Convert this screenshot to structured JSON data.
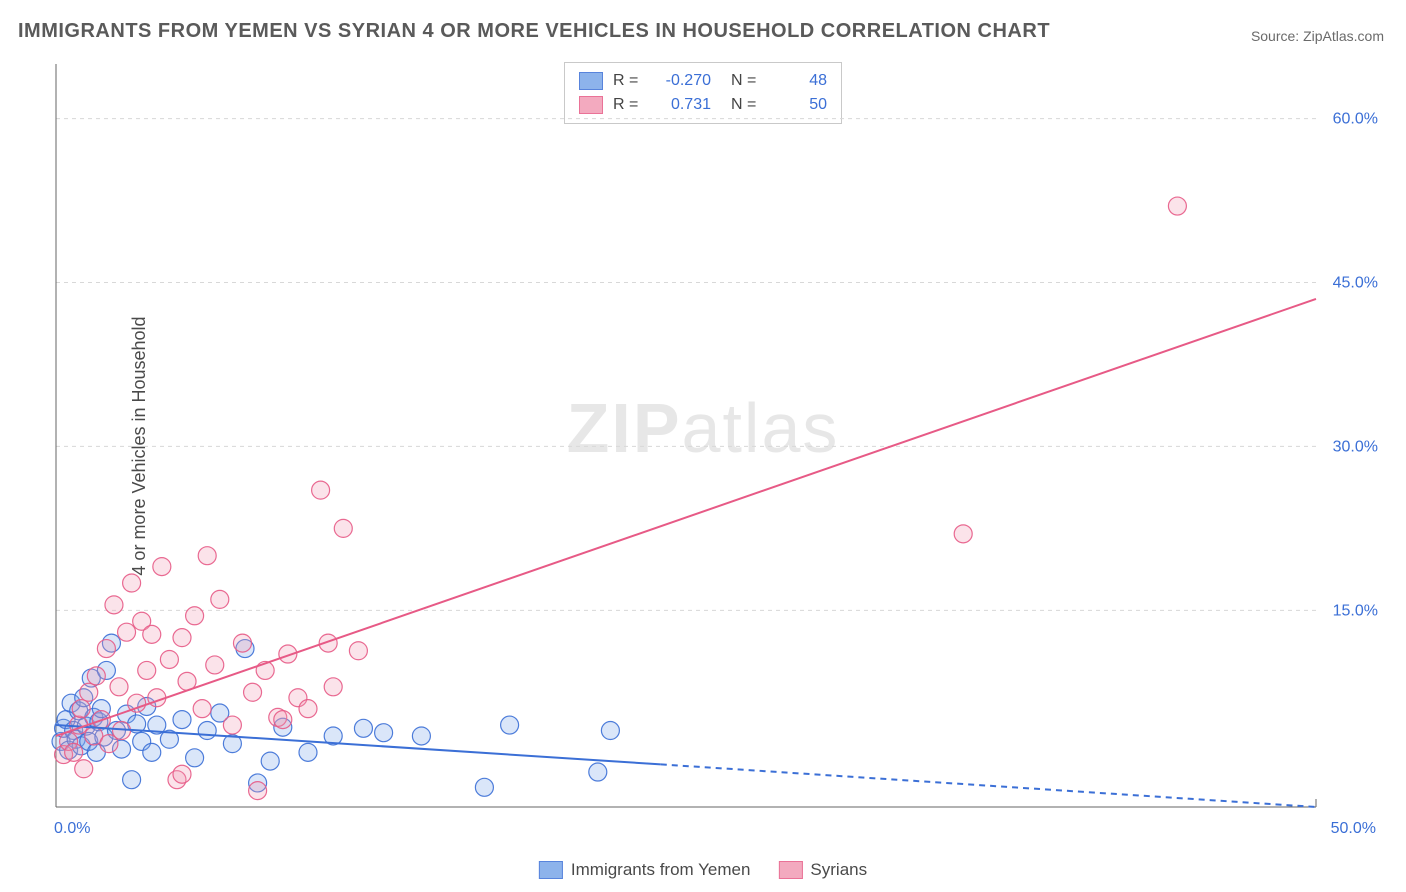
{
  "title": "IMMIGRANTS FROM YEMEN VS SYRIAN 4 OR MORE VEHICLES IN HOUSEHOLD CORRELATION CHART",
  "source_prefix": "Source: ",
  "source_name": "ZipAtlas.com",
  "ylabel": "4 or more Vehicles in Household",
  "watermark_a": "ZIP",
  "watermark_b": "atlas",
  "chart": {
    "type": "scatter",
    "background_color": "#ffffff",
    "grid_color": "#d8d8d8",
    "axis_color": "#666666",
    "x_min": 0.0,
    "x_max": 50.0,
    "y_min": -3.0,
    "y_max": 65.0,
    "x_ticks": [
      {
        "v": 0.0,
        "label": "0.0%"
      },
      {
        "v": 50.0,
        "label": "50.0%"
      }
    ],
    "y_ticks": [
      {
        "v": 15.0,
        "label": "15.0%"
      },
      {
        "v": 30.0,
        "label": "30.0%"
      },
      {
        "v": 45.0,
        "label": "45.0%"
      },
      {
        "v": 60.0,
        "label": "60.0%"
      }
    ],
    "marker_radius": 9,
    "marker_opacity": 0.28,
    "marker_stroke_opacity": 0.9,
    "line_width": 2,
    "series": [
      {
        "key": "yemen",
        "label": "Immigrants from Yemen",
        "color_fill": "#7aa6e8",
        "color_stroke": "#3b6fd6",
        "r_value": "-0.270",
        "n_value": "48",
        "trend": {
          "x1": 0.0,
          "y1": 4.5,
          "x2": 50.0,
          "y2": -3.0,
          "extrapolate_from_x": 24.0
        },
        "points": [
          [
            0.2,
            3.0
          ],
          [
            0.3,
            4.2
          ],
          [
            0.4,
            5.0
          ],
          [
            0.5,
            2.2
          ],
          [
            0.6,
            6.5
          ],
          [
            0.7,
            4.0
          ],
          [
            0.8,
            3.2
          ],
          [
            0.9,
            5.8
          ],
          [
            1.0,
            2.6
          ],
          [
            1.1,
            7.0
          ],
          [
            1.2,
            4.4
          ],
          [
            1.3,
            3.0
          ],
          [
            1.4,
            8.8
          ],
          [
            1.5,
            5.2
          ],
          [
            1.6,
            2.0
          ],
          [
            1.7,
            4.8
          ],
          [
            1.8,
            6.0
          ],
          [
            1.9,
            3.4
          ],
          [
            2.0,
            9.5
          ],
          [
            2.2,
            12.0
          ],
          [
            2.4,
            4.0
          ],
          [
            2.6,
            2.3
          ],
          [
            2.8,
            5.5
          ],
          [
            3.0,
            -0.5
          ],
          [
            3.2,
            4.6
          ],
          [
            3.4,
            3.0
          ],
          [
            3.6,
            6.2
          ],
          [
            3.8,
            2.0
          ],
          [
            4.0,
            4.5
          ],
          [
            4.5,
            3.2
          ],
          [
            5.0,
            5.0
          ],
          [
            5.5,
            1.5
          ],
          [
            6.0,
            4.0
          ],
          [
            6.5,
            5.6
          ],
          [
            7.0,
            2.8
          ],
          [
            7.5,
            11.5
          ],
          [
            8.0,
            -0.8
          ],
          [
            8.5,
            1.2
          ],
          [
            9.0,
            4.3
          ],
          [
            10.0,
            2.0
          ],
          [
            11.0,
            3.5
          ],
          [
            12.2,
            4.2
          ],
          [
            13.0,
            3.8
          ],
          [
            14.5,
            3.5
          ],
          [
            17.0,
            -1.2
          ],
          [
            18.0,
            4.5
          ],
          [
            21.5,
            0.2
          ],
          [
            22.0,
            4.0
          ]
        ]
      },
      {
        "key": "syrians",
        "label": "Syrians",
        "color_fill": "#f29cb5",
        "color_stroke": "#e75a86",
        "r_value": "0.731",
        "n_value": "50",
        "trend": {
          "x1": 0.0,
          "y1": 3.5,
          "x2": 50.0,
          "y2": 43.5,
          "extrapolate_from_x": null
        },
        "points": [
          [
            0.3,
            1.8
          ],
          [
            0.5,
            3.0
          ],
          [
            0.7,
            2.0
          ],
          [
            0.9,
            4.5
          ],
          [
            1.0,
            6.0
          ],
          [
            1.1,
            0.5
          ],
          [
            1.3,
            7.5
          ],
          [
            1.5,
            3.5
          ],
          [
            1.6,
            9.0
          ],
          [
            1.8,
            5.0
          ],
          [
            2.0,
            11.5
          ],
          [
            2.1,
            2.8
          ],
          [
            2.3,
            15.5
          ],
          [
            2.5,
            8.0
          ],
          [
            2.6,
            4.0
          ],
          [
            2.8,
            13.0
          ],
          [
            3.0,
            17.5
          ],
          [
            3.2,
            6.5
          ],
          [
            3.4,
            14.0
          ],
          [
            3.6,
            9.5
          ],
          [
            3.8,
            12.8
          ],
          [
            4.0,
            7.0
          ],
          [
            4.2,
            19.0
          ],
          [
            4.5,
            10.5
          ],
          [
            4.8,
            -0.5
          ],
          [
            5.0,
            12.5
          ],
          [
            5.2,
            8.5
          ],
          [
            5.5,
            14.5
          ],
          [
            5.8,
            6.0
          ],
          [
            6.0,
            20.0
          ],
          [
            6.3,
            10.0
          ],
          [
            6.5,
            16.0
          ],
          [
            7.0,
            4.5
          ],
          [
            7.4,
            12.0
          ],
          [
            7.8,
            7.5
          ],
          [
            8.0,
            -1.5
          ],
          [
            8.3,
            9.5
          ],
          [
            8.8,
            5.2
          ],
          [
            9.2,
            11.0
          ],
          [
            9.6,
            7.0
          ],
          [
            10.5,
            26.0
          ],
          [
            10.8,
            12.0
          ],
          [
            11.4,
            22.5
          ],
          [
            12.0,
            11.3
          ],
          [
            10.0,
            6.0
          ],
          [
            11.0,
            8.0
          ],
          [
            9.0,
            5.0
          ],
          [
            36.0,
            22.0
          ],
          [
            44.5,
            52.0
          ],
          [
            5.0,
            0.0
          ]
        ]
      }
    ]
  },
  "legend_top": {
    "r_label": "R =",
    "n_label": "N ="
  }
}
